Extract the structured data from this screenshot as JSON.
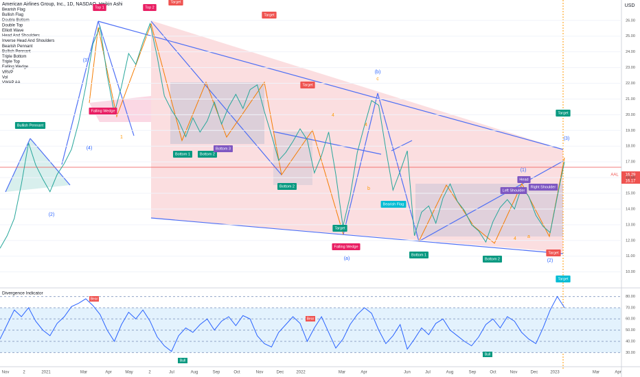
{
  "header": {
    "title": "American Airlines Group, Inc., 1D, NASDAQ, Heikin Ashi",
    "indicators": [
      "Bearish Flag",
      "Bullish Flag",
      "Double Bottom",
      "Double Top",
      "Elliott Wave",
      "Head And Shoulders",
      "Inverse Head And Shoulders",
      "Bearish Pennant",
      "Bullish Pennant",
      "Triple Bottom",
      "Triple Top",
      "Falling Wedge",
      "VRVP",
      "Vol",
      "VWAP AA"
    ],
    "currency": "USD"
  },
  "price_tags": {
    "symbol": "AAL",
    "last": "16.29",
    "prev": "16.17"
  },
  "pattern_labels": [
    "Top 1",
    "Top 2",
    "Target",
    "Target",
    "Target",
    "Falling Wedge",
    "Bullish Pennant",
    "Bottom 1",
    "Bottom 2",
    "Bottom 3",
    "Bottom 2",
    "Target",
    "Falling Wedge",
    "Bearish Flag",
    "Bottom 1",
    "Bottom 2",
    "Head",
    "Left Shoulder",
    "Right Shoulder",
    "Target",
    "Target",
    "Target"
  ],
  "wave_labels": [
    "(3)",
    "(4)",
    "(2)",
    "(b)",
    "(a)",
    "(1)",
    "(2)",
    "(3)",
    "c",
    "1",
    "4",
    "b",
    "4",
    "a",
    "4"
  ],
  "rsi_labels": [
    "Bear",
    "Bull",
    "Bear",
    "Bull"
  ],
  "time_axis": [
    "Nov",
    "2",
    "2021",
    "Mar",
    "Apr",
    "May",
    "2",
    "Jul",
    "Aug",
    "Sep",
    "Oct",
    "Nov",
    "Dec",
    "2022",
    "Mar",
    "Apr",
    "Jun",
    "Jul",
    "Aug",
    "Sep",
    "Oct",
    "Nov",
    "Dec",
    "2023",
    "Mar",
    "Apr"
  ],
  "chart_data": [
    {
      "type": "line",
      "color": "#26a69a",
      "values": [
        11.5,
        12.3,
        13.4,
        15.6,
        18.2,
        16.8,
        15.9,
        15.1,
        16.2,
        16.9,
        17.8,
        19.5,
        21.8,
        24.5,
        25.6,
        22.5,
        20.1,
        21.8,
        23.9,
        23.2,
        24.6,
        25.8,
        23.7,
        21.2,
        20.3,
        19.6,
        18.6,
        19.8,
        18.9,
        19.6,
        20.8,
        19.4,
        20.5,
        21.3,
        20.4,
        21.6,
        21.9,
        20.2,
        18.7,
        17.1,
        17.6,
        18.3,
        19.1,
        18.4,
        16.3,
        17.4,
        18.9,
        16.2,
        12.9,
        14.8,
        17.6,
        19.3,
        20.9,
        20.6,
        17.8,
        15.2,
        16.4,
        17.7,
        12.3,
        13.8,
        14.2,
        13.1,
        14.7,
        15.6,
        14.5,
        13.9,
        13.0,
        12.6,
        11.9,
        13.2,
        14.1,
        14.6,
        14.0,
        15.4,
        14.8,
        13.6,
        12.9,
        12.5,
        14.8,
        17.0
      ],
      "ylim": [
        9.2,
        27.3
      ],
      "yticks": [
        {
          "value": 10,
          "label": "10.00"
        },
        {
          "value": 11,
          "label": "11.00"
        },
        {
          "value": 12,
          "label": "12.00"
        },
        {
          "value": 13,
          "label": "13.00"
        },
        {
          "value": 14,
          "label": "14.00"
        },
        {
          "value": 15,
          "label": "15.00"
        },
        {
          "value": 16,
          "label": "16.00"
        },
        {
          "value": 17,
          "label": "17.00"
        },
        {
          "value": 18,
          "label": "18.00"
        },
        {
          "value": 19,
          "label": "19.00"
        },
        {
          "value": 20,
          "label": "20.00"
        },
        {
          "value": 21,
          "label": "21.00"
        },
        {
          "value": 22,
          "label": "22.00"
        },
        {
          "value": 23,
          "label": "23.00"
        },
        {
          "value": 24,
          "label": "24.00"
        },
        {
          "value": 25,
          "label": "25.00"
        },
        {
          "value": 26,
          "label": "26.00"
        }
      ],
      "grid": true
    },
    {
      "type": "line",
      "title": "Divergence Indicator",
      "color": "#2962ff",
      "values": [
        42,
        55,
        68,
        62,
        70,
        58,
        50,
        45,
        56,
        62,
        71,
        74,
        78,
        72,
        64,
        50,
        40,
        55,
        66,
        60,
        68,
        58,
        44,
        36,
        31,
        45,
        52,
        48,
        55,
        60,
        50,
        58,
        62,
        54,
        63,
        60,
        45,
        38,
        35,
        48,
        55,
        62,
        56,
        40,
        52,
        62,
        48,
        34,
        42,
        55,
        64,
        70,
        65,
        50,
        38,
        45,
        55,
        33,
        42,
        52,
        46,
        56,
        60,
        50,
        45,
        40,
        36,
        44,
        55,
        60,
        52,
        62,
        58,
        48,
        42,
        38,
        52,
        68,
        80,
        70
      ],
      "ylim": [
        19.2,
        87.7
      ],
      "yticks": [
        {
          "value": 30,
          "label": "30.00"
        },
        {
          "value": 40,
          "label": "40.00"
        },
        {
          "value": 50,
          "label": "50.00"
        },
        {
          "value": 60,
          "label": "60.00"
        },
        {
          "value": 70,
          "label": "70.00"
        },
        {
          "value": 80,
          "label": "80.00"
        }
      ]
    }
  ]
}
